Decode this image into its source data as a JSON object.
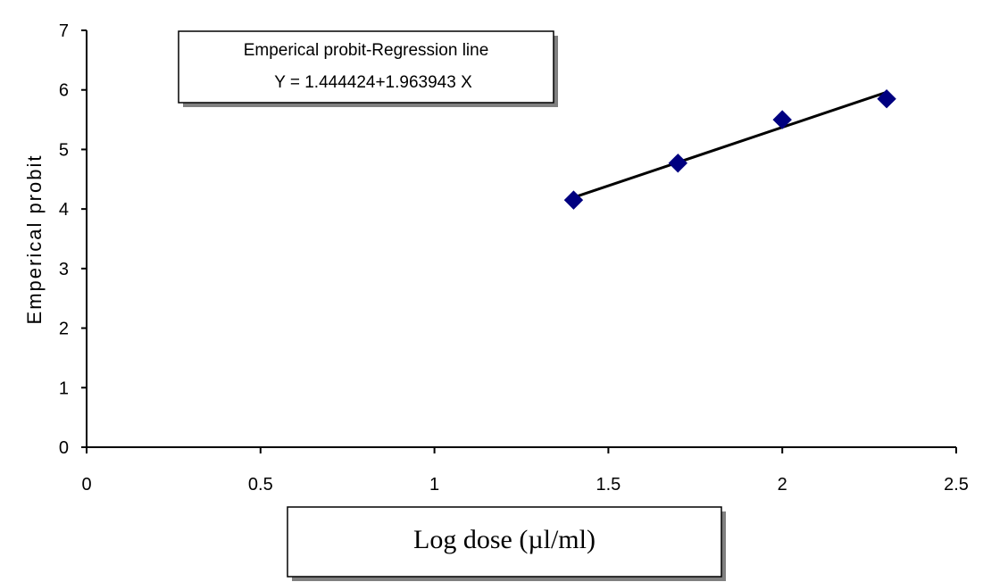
{
  "chart_data": {
    "type": "scatter",
    "title": "",
    "xlabel": "Log dose (µl/ml)",
    "ylabel": "Emperical probit",
    "xlim": [
      0,
      2.5
    ],
    "ylim": [
      0,
      7
    ],
    "x_ticks": [
      "0",
      "0.5",
      "1",
      "1.5",
      "2",
      "2.5"
    ],
    "y_ticks": [
      "0",
      "1",
      "2",
      "3",
      "4",
      "5",
      "6",
      "7"
    ],
    "series": [
      {
        "x": [
          1.4,
          1.7,
          2.0,
          2.3
        ],
        "y": [
          4.15,
          4.77,
          5.5,
          5.85
        ],
        "marker": "diamond",
        "color": "#000080"
      }
    ],
    "trendline": {
      "intercept": 1.444424,
      "slope": 1.963943,
      "x_range": [
        1.4,
        2.3
      ],
      "color": "#000000"
    },
    "annotation": {
      "line1": "Emperical probit-Regression line",
      "line2": "Y = 1.444424+1.963943 X"
    },
    "grid": false,
    "legend": "none"
  }
}
